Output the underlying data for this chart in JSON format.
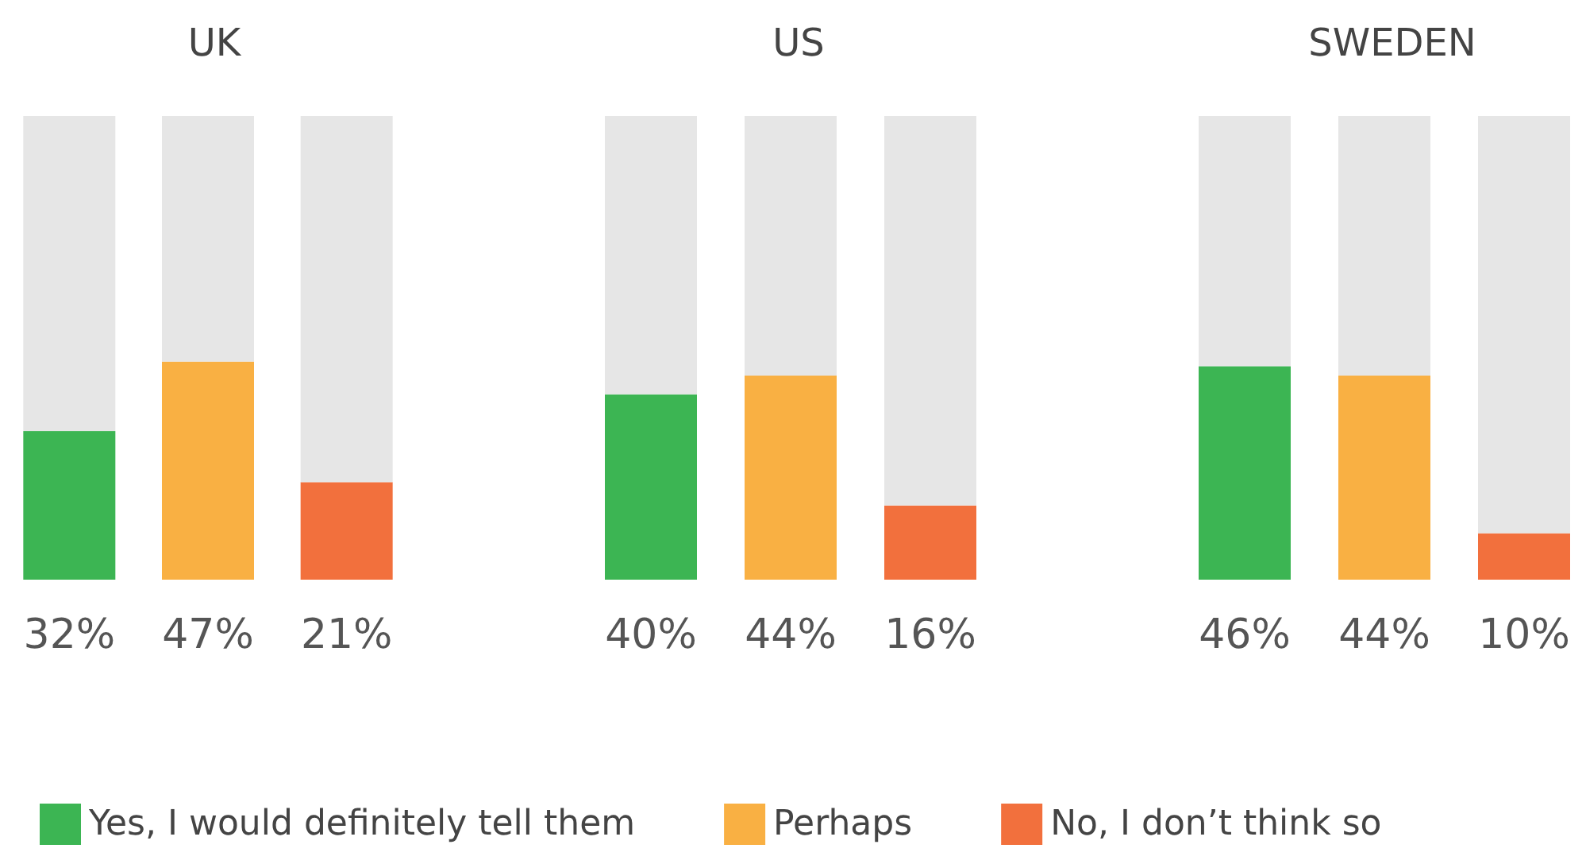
{
  "chart_data": [
    {
      "type": "bar",
      "title": "UK",
      "categories": [
        null,
        null,
        null
      ],
      "ylim": [
        0,
        100
      ],
      "tick_labels": false,
      "stacked": true,
      "legend": "bottom",
      "series": [
        {
          "name": "Yes, I would definitely tell them",
          "color": "#3cb553",
          "values": [
            32,
            null,
            null
          ],
          "value_labels": [
            "32%",
            null,
            null
          ]
        },
        {
          "name": "Perhaps",
          "color": "#f9b043",
          "values": [
            null,
            47,
            null
          ],
          "value_labels": [
            null,
            "47%",
            null
          ]
        },
        {
          "name": "No, I don’t think so",
          "color": "#f2703d",
          "values": [
            null,
            null,
            21
          ],
          "value_labels": [
            null,
            null,
            "21%"
          ]
        },
        {
          "color": "#e6e6e6",
          "values": [
            68,
            53,
            79
          ]
        }
      ]
    },
    {
      "type": "bar",
      "title": "US",
      "categories": [
        null,
        null,
        null
      ],
      "ylim": [
        0,
        100
      ],
      "tick_labels": false,
      "stacked": true,
      "series": [
        {
          "color": "#3cb553",
          "values": [
            40,
            null,
            null
          ],
          "value_labels": [
            "40%",
            null,
            null
          ]
        },
        {
          "color": "#f9b043",
          "values": [
            null,
            44,
            null
          ],
          "value_labels": [
            null,
            "44%",
            null
          ]
        },
        {
          "color": "#f2703d",
          "values": [
            null,
            null,
            16
          ],
          "value_labels": [
            null,
            null,
            "16%"
          ]
        },
        {
          "color": "#e6e6e6",
          "values": [
            60,
            56,
            84
          ]
        }
      ]
    },
    {
      "type": "bar",
      "title": "SWEDEN",
      "categories": [
        null,
        null,
        null
      ],
      "ylim": [
        0,
        100
      ],
      "tick_labels": false,
      "stacked": true,
      "series": [
        {
          "color": "#3cb553",
          "values": [
            46,
            null,
            null
          ],
          "value_labels": [
            "46%",
            null,
            null
          ]
        },
        {
          "color": "#f9b043",
          "values": [
            null,
            44,
            null
          ],
          "value_labels": [
            null,
            "44%",
            null
          ]
        },
        {
          "color": "#f2703d",
          "values": [
            null,
            null,
            10
          ],
          "value_labels": [
            null,
            null,
            "10%"
          ]
        },
        {
          "color": "#e6e6e6",
          "values": [
            54,
            56,
            90
          ]
        }
      ]
    }
  ]
}
